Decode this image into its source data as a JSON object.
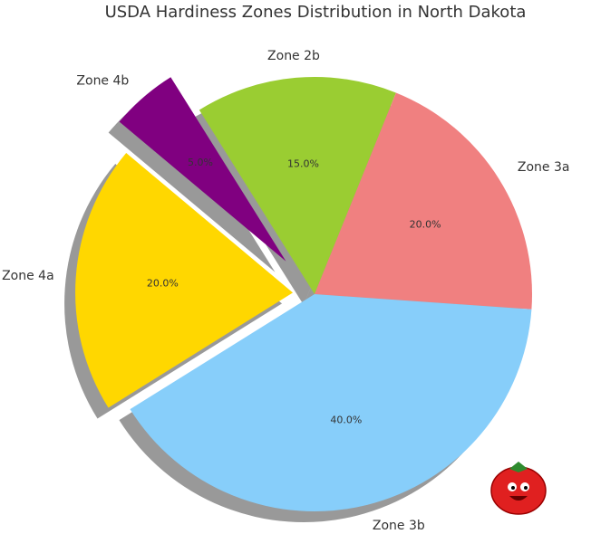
{
  "chart_data": {
    "type": "pie",
    "title": "USDA Hardiness Zones Distribution in North Dakota",
    "categories": [
      "Zone 2b",
      "Zone 3a",
      "Zone 3b",
      "Zone 4a",
      "Zone 4b"
    ],
    "values": [
      15,
      20,
      40,
      20,
      5
    ],
    "value_labels": [
      "15.0%",
      "20.0%",
      "40.0%",
      "20.0%",
      "5.0%"
    ],
    "colors": [
      "#9acd32",
      "#f08080",
      "#87cefa",
      "#ffd700",
      "#800080"
    ],
    "explode": [
      0,
      0,
      0,
      0.1,
      0.2
    ],
    "shadow": true
  }
}
